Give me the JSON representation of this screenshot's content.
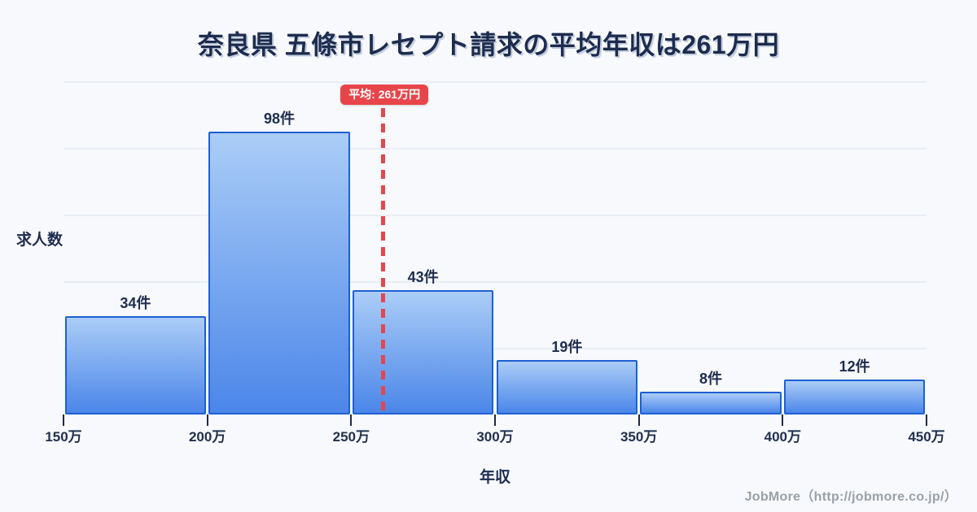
{
  "page": {
    "title": "奈良県 五條市レセプト請求の平均年収は261万円"
  },
  "chart_data": {
    "type": "bar",
    "subtype": "histogram",
    "title": "奈良県 五條市レセプト請求の平均年収は261万円",
    "xlabel": "年収",
    "ylabel": "求人数",
    "bin_edges": [
      150,
      200,
      250,
      300,
      350,
      400,
      450
    ],
    "bin_unit": "万",
    "x_tick_labels": [
      "150万",
      "200万",
      "250万",
      "300万",
      "350万",
      "400万",
      "450万"
    ],
    "values": [
      34,
      98,
      43,
      19,
      8,
      12
    ],
    "value_labels": [
      "34件",
      "98件",
      "43件",
      "19件",
      "8件",
      "12件"
    ],
    "mean": 261,
    "mean_label": "平均: 261万円",
    "xlim": [
      150,
      450
    ],
    "grid": "horizontal",
    "legend": "none"
  },
  "footer": {
    "credit": "JobMore（http://jobmore.co.jp/）"
  },
  "colors": {
    "background": "#f7f9fc",
    "bar_border": "#1f5fd2",
    "bar_gradient_top": "#abcdf7",
    "bar_gradient_bottom": "#4b86e9",
    "mean_accent": "#e8454b",
    "text_primary": "#1e2c4e",
    "gridline": "#e9eef6",
    "tick_mark": "#1c2b4a",
    "footer_text": "#9aa0a8"
  }
}
